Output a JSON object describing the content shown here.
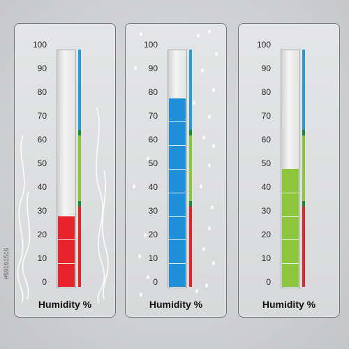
{
  "gauges": [
    {
      "label": "Humidity %",
      "value": 30,
      "fill_color": "#e9232b"
    },
    {
      "label": "Humidity %",
      "value": 80,
      "fill_color": "#1f8fd8"
    },
    {
      "label": "Humidity %",
      "value": 50,
      "fill_color": "#8cc63f"
    }
  ],
  "scale_labels": [
    "100",
    "90",
    "80",
    "70",
    "60",
    "50",
    "40",
    "30",
    "20",
    "10",
    "0"
  ],
  "range_bar_colors": {
    "top": "#2a9ad6",
    "middle": "#8cc63f",
    "bottom": "#e0252c",
    "marker": "#1a8a3a"
  },
  "watermark": "#59161516"
}
